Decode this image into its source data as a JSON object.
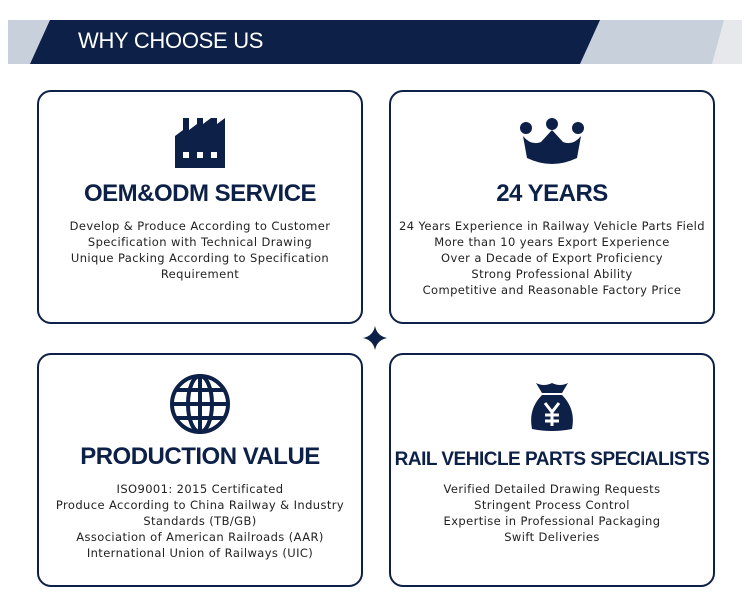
{
  "header": {
    "title": "WHY CHOOSE US"
  },
  "colors": {
    "navy": "#0d2047",
    "banner_gray": "#c8d0dc"
  },
  "cards": [
    {
      "icon": "factory-icon",
      "title": "OEM&ODM SERVICE",
      "lines": [
        "Develop & Produce According to Customer",
        "Specification with Technical Drawing",
        "Unique Packing According to Specification",
        "Requirement"
      ]
    },
    {
      "icon": "crown-icon",
      "title": "24 YEARS",
      "lines": [
        "24 Years Experience in Railway Vehicle Parts Field",
        "More than 10 years Export Experience",
        "Over a Decade of Export Proficiency",
        "Strong Professional Ability",
        "Competitive and Reasonable Factory Price"
      ]
    },
    {
      "icon": "globe-icon",
      "title": "PRODUCTION VALUE",
      "lines": [
        "ISO9001: 2015 Certificated",
        "Produce According to China Railway & Industry",
        "Standards (TB/GB)",
        "Association of American Railroads (AAR)",
        "International Union of Railways (UIC)"
      ]
    },
    {
      "icon": "money-bag-icon",
      "title": "RAIL VEHICLE PARTS SPECIALISTS",
      "lines": [
        "Verified Detailed Drawing Requests",
        "Stringent Process Control",
        "Expertise in Professional Packaging",
        "Swift Deliveries"
      ]
    }
  ]
}
